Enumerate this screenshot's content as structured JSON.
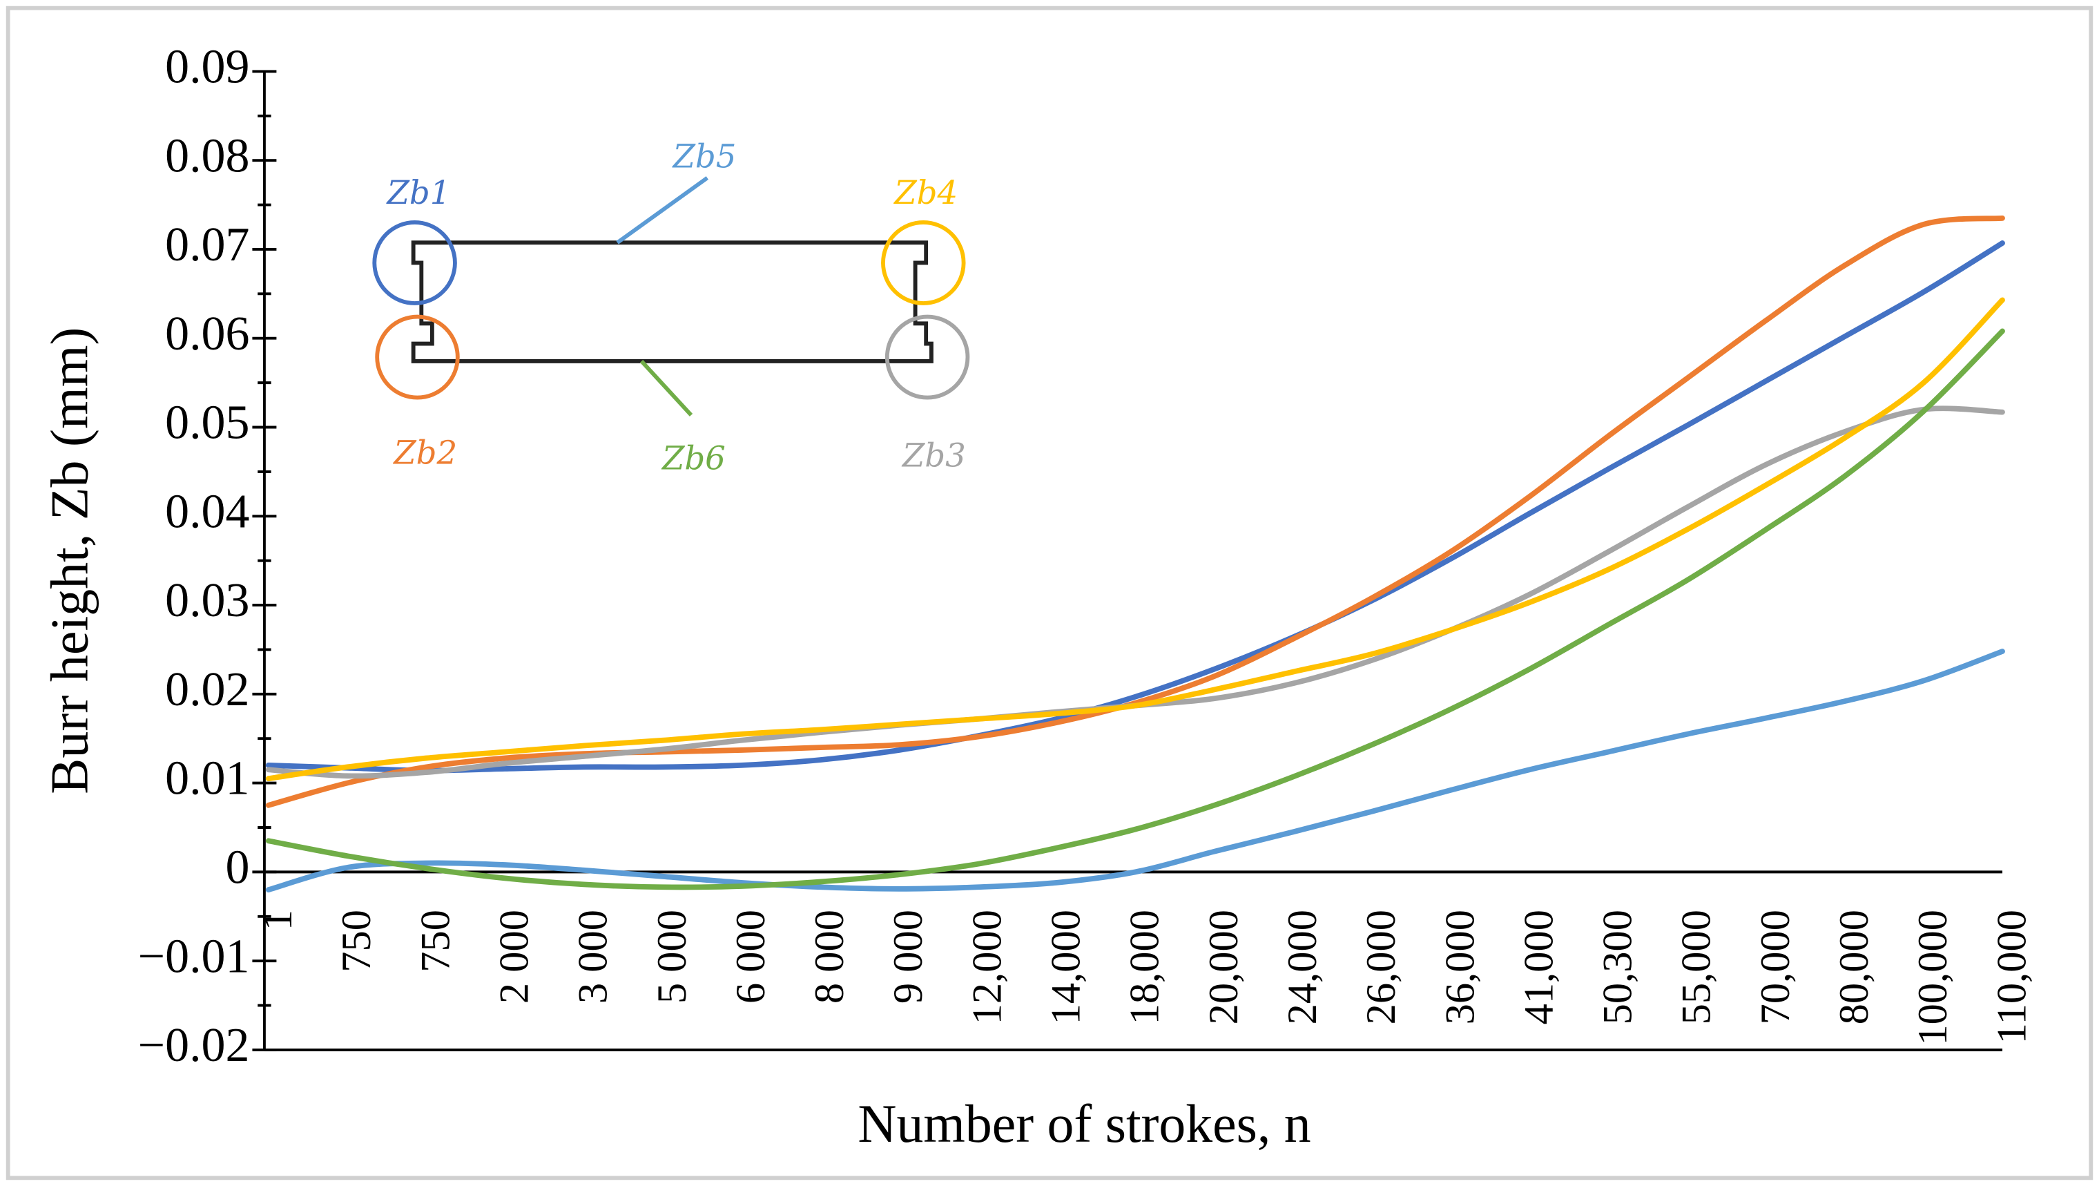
{
  "chart_data": {
    "type": "line",
    "xlabel": "Number of strokes, n",
    "ylabel": "Burr height, Zb (mm)",
    "categories": [
      "1",
      "750",
      "750",
      "2 000",
      "3 000",
      "5 000",
      "6 000",
      "8 000",
      "9 000",
      "12,000",
      "14,000",
      "18,000",
      "20,000",
      "24,000",
      "26,000",
      "36,000",
      "41,000",
      "50,300",
      "55,000",
      "70,000",
      "80,000",
      "100,000",
      "110,000"
    ],
    "ylim": [
      -0.02,
      0.09
    ],
    "yticks": [
      {
        "value": -0.02,
        "label": "−0.02"
      },
      {
        "value": -0.01,
        "label": "−0.01"
      },
      0,
      0.01,
      0.02,
      0.03,
      0.04,
      0.05,
      0.06,
      0.07,
      0.08,
      0.09
    ],
    "series": [
      {
        "name": "Zb1",
        "color": "#4472c4",
        "values": [
          0.012,
          0.0117,
          0.0114,
          0.0116,
          0.0118,
          0.0118,
          0.012,
          0.0126,
          0.0137,
          0.0153,
          0.0172,
          0.0197,
          0.0228,
          0.0264,
          0.0305,
          0.0352,
          0.0403,
          0.0453,
          0.0502,
          0.0552,
          0.0602,
          0.0652,
          0.0707
        ]
      },
      {
        "name": "Zb2",
        "color": "#ed7d31",
        "values": [
          0.0075,
          0.01,
          0.0118,
          0.0128,
          0.0133,
          0.0135,
          0.0137,
          0.014,
          0.0143,
          0.0152,
          0.0168,
          0.019,
          0.022,
          0.0262,
          0.0308,
          0.036,
          0.0422,
          0.049,
          0.0555,
          0.062,
          0.0682,
          0.0728,
          0.0735
        ]
      },
      {
        "name": "Zb3",
        "color": "#a5a5a5",
        "values": [
          0.0115,
          0.0108,
          0.0112,
          0.0122,
          0.013,
          0.0138,
          0.0148,
          0.0157,
          0.0165,
          0.0172,
          0.018,
          0.0187,
          0.0195,
          0.0212,
          0.0238,
          0.0272,
          0.0312,
          0.036,
          0.041,
          0.0458,
          0.0495,
          0.052,
          0.0517
        ]
      },
      {
        "name": "Zb4",
        "color": "#ffc000",
        "values": [
          0.0105,
          0.0118,
          0.0128,
          0.0135,
          0.0142,
          0.0148,
          0.0155,
          0.016,
          0.0166,
          0.0172,
          0.0178,
          0.0187,
          0.0205,
          0.0225,
          0.0245,
          0.0272,
          0.0303,
          0.034,
          0.0385,
          0.0435,
          0.0488,
          0.055,
          0.0643
        ]
      },
      {
        "name": "Zb5",
        "color": "#5b9bd5",
        "values": [
          -0.002,
          0.0005,
          0.001,
          0.0008,
          0.0002,
          -0.0005,
          -0.0012,
          -0.0017,
          -0.0019,
          -0.0017,
          -0.0012,
          0.0,
          0.0023,
          0.0045,
          0.0068,
          0.0092,
          0.0115,
          0.0135,
          0.0155,
          0.0173,
          0.0192,
          0.0215,
          0.0248
        ]
      },
      {
        "name": "Zb6",
        "color": "#70ad47",
        "values": [
          0.0035,
          0.0018,
          0.0004,
          -0.0007,
          -0.0014,
          -0.0017,
          -0.0016,
          -0.0011,
          -0.0003,
          0.0009,
          0.0027,
          0.0048,
          0.0075,
          0.0107,
          0.0143,
          0.0183,
          0.0228,
          0.0278,
          0.0328,
          0.0385,
          0.0445,
          0.0518,
          0.0608
        ]
      }
    ]
  }
}
